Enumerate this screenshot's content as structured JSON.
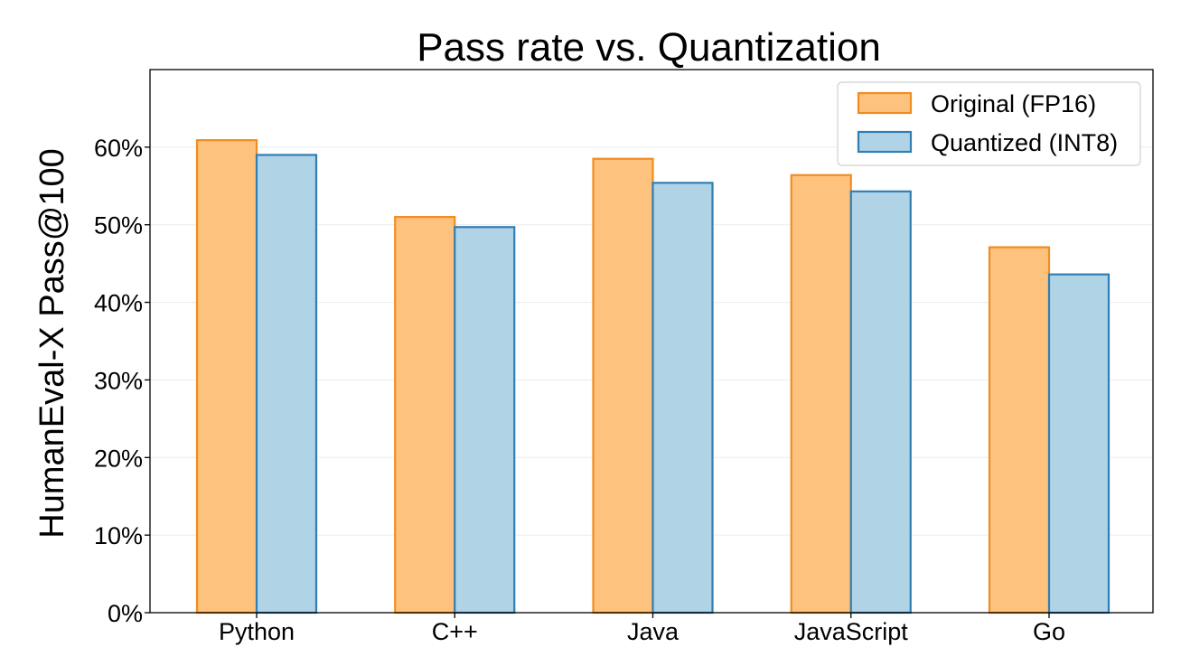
{
  "chart_data": {
    "type": "bar",
    "title": "Pass rate vs. Quantization",
    "xlabel": "",
    "ylabel": "HumanEval-X Pass@100",
    "categories": [
      "Python",
      "C++",
      "Java",
      "JavaScript",
      "Go"
    ],
    "series": [
      {
        "name": "Original (FP16)",
        "values": [
          60.9,
          51.0,
          58.5,
          56.4,
          47.1
        ],
        "color": "#fdc37e",
        "edge_color": "#f28c1e"
      },
      {
        "name": "Quantized (INT8)",
        "values": [
          59.0,
          49.7,
          55.4,
          54.3,
          43.6
        ],
        "color": "#b0d3e6",
        "edge_color": "#2f7fb5"
      }
    ],
    "ylim": [
      0,
      70
    ],
    "yticks": [
      0,
      10,
      20,
      30,
      40,
      50,
      60
    ],
    "ytick_labels": [
      "0%",
      "10%",
      "20%",
      "30%",
      "40%",
      "50%",
      "60%"
    ],
    "grid": true,
    "legend_position": "top-right"
  }
}
